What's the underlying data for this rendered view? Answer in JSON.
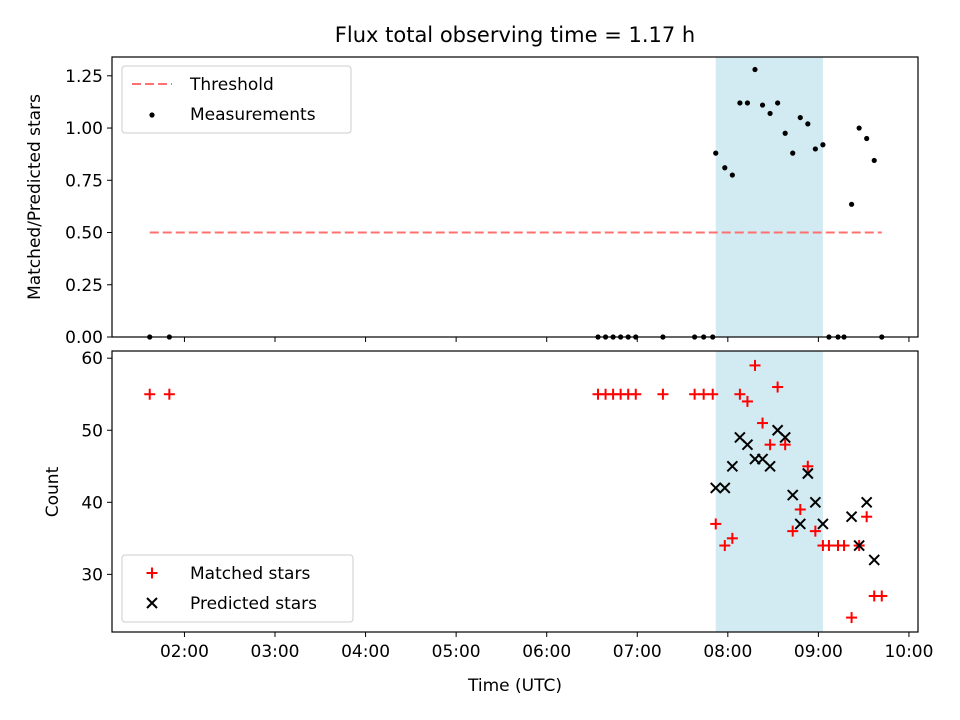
{
  "title": "Flux total observing time = 1.17 h",
  "colors": {
    "threshold": "#ff7070",
    "measurement": "#000000",
    "matched": "#ff0000",
    "predicted": "#000000",
    "shade": "#add8e6"
  },
  "chart_data": [
    {
      "type": "scatter",
      "ylabel": "Matched/Predicted stars",
      "ylim": [
        0,
        1.34
      ],
      "yticks": [
        0,
        0.25,
        0.5,
        0.75,
        1.0,
        1.25
      ],
      "ytick_labels": [
        "0.00",
        "0.25",
        "0.50",
        "0.75",
        "1.00",
        "1.25"
      ],
      "xlim": [
        "01:12",
        "10:06"
      ],
      "legend": "upper-left",
      "legend_entries": [
        "Threshold",
        "Measurements"
      ],
      "shaded_span": [
        "07:52",
        "09:03"
      ],
      "threshold": {
        "name": "Threshold",
        "y": 0.5,
        "x": [
          "01:37",
          "09:42"
        ],
        "style": "dashed"
      },
      "series": [
        {
          "name": "Measurements",
          "points": [
            [
              "01:37",
              0
            ],
            [
              "01:50",
              0
            ],
            [
              "06:34",
              0
            ],
            [
              "06:39",
              0
            ],
            [
              "06:44",
              0
            ],
            [
              "06:49",
              0
            ],
            [
              "06:54",
              0
            ],
            [
              "06:59",
              0
            ],
            [
              "07:17",
              0
            ],
            [
              "07:38",
              0
            ],
            [
              "07:44",
              0
            ],
            [
              "07:50",
              0
            ],
            [
              "07:52",
              0.88
            ],
            [
              "07:58",
              0.81
            ],
            [
              "08:03",
              0.775
            ],
            [
              "08:08",
              1.12
            ],
            [
              "08:13",
              1.12
            ],
            [
              "08:18",
              1.28
            ],
            [
              "08:23",
              1.11
            ],
            [
              "08:28",
              1.07
            ],
            [
              "08:33",
              1.12
            ],
            [
              "08:38",
              0.975
            ],
            [
              "08:43",
              0.88
            ],
            [
              "08:48",
              1.05
            ],
            [
              "08:53",
              1.02
            ],
            [
              "08:58",
              0.9
            ],
            [
              "09:03",
              0.92
            ],
            [
              "09:07",
              0
            ],
            [
              "09:13",
              0
            ],
            [
              "09:17",
              0
            ],
            [
              "09:22",
              0.635
            ],
            [
              "09:27",
              1.0
            ],
            [
              "09:32",
              0.95
            ],
            [
              "09:37",
              0.845
            ],
            [
              "09:42",
              0
            ]
          ]
        }
      ]
    },
    {
      "type": "scatter",
      "xlabel": "Time (UTC)",
      "ylabel": "Count",
      "ylim": [
        22,
        61
      ],
      "yticks": [
        30,
        40,
        50,
        60
      ],
      "xlim": [
        "01:12",
        "10:06"
      ],
      "xticks": [
        "02:00",
        "03:00",
        "04:00",
        "05:00",
        "06:00",
        "07:00",
        "08:00",
        "09:00",
        "10:00"
      ],
      "legend": "lower-left",
      "legend_entries": [
        "Matched stars",
        "Predicted stars"
      ],
      "shaded_span": [
        "07:52",
        "09:03"
      ],
      "series": [
        {
          "name": "Matched stars",
          "marker": "plus",
          "points": [
            [
              "01:37",
              55
            ],
            [
              "01:50",
              55
            ],
            [
              "06:34",
              55
            ],
            [
              "06:39",
              55
            ],
            [
              "06:44",
              55
            ],
            [
              "06:49",
              55
            ],
            [
              "06:54",
              55
            ],
            [
              "06:59",
              55
            ],
            [
              "07:17",
              55
            ],
            [
              "07:38",
              55
            ],
            [
              "07:44",
              55
            ],
            [
              "07:50",
              55
            ],
            [
              "07:52",
              37
            ],
            [
              "07:58",
              34
            ],
            [
              "08:03",
              35
            ],
            [
              "08:08",
              55
            ],
            [
              "08:13",
              54
            ],
            [
              "08:18",
              59
            ],
            [
              "08:23",
              51
            ],
            [
              "08:28",
              48
            ],
            [
              "08:33",
              56
            ],
            [
              "08:38",
              48
            ],
            [
              "08:43",
              36
            ],
            [
              "08:48",
              39
            ],
            [
              "08:53",
              45
            ],
            [
              "08:58",
              36
            ],
            [
              "09:03",
              34
            ],
            [
              "09:07",
              34
            ],
            [
              "09:13",
              34
            ],
            [
              "09:17",
              34
            ],
            [
              "09:22",
              24
            ],
            [
              "09:27",
              34
            ],
            [
              "09:32",
              38
            ],
            [
              "09:37",
              27
            ],
            [
              "09:42",
              27
            ]
          ]
        },
        {
          "name": "Predicted stars",
          "marker": "x",
          "points": [
            [
              "07:52",
              42
            ],
            [
              "07:58",
              42
            ],
            [
              "08:03",
              45
            ],
            [
              "08:08",
              49
            ],
            [
              "08:13",
              48
            ],
            [
              "08:18",
              46
            ],
            [
              "08:23",
              46
            ],
            [
              "08:28",
              45
            ],
            [
              "08:33",
              50
            ],
            [
              "08:38",
              49
            ],
            [
              "08:43",
              41
            ],
            [
              "08:48",
              37
            ],
            [
              "08:53",
              44
            ],
            [
              "08:58",
              40
            ],
            [
              "09:03",
              37
            ],
            [
              "09:22",
              38
            ],
            [
              "09:27",
              34
            ],
            [
              "09:32",
              40
            ],
            [
              "09:37",
              32
            ]
          ]
        }
      ]
    }
  ]
}
